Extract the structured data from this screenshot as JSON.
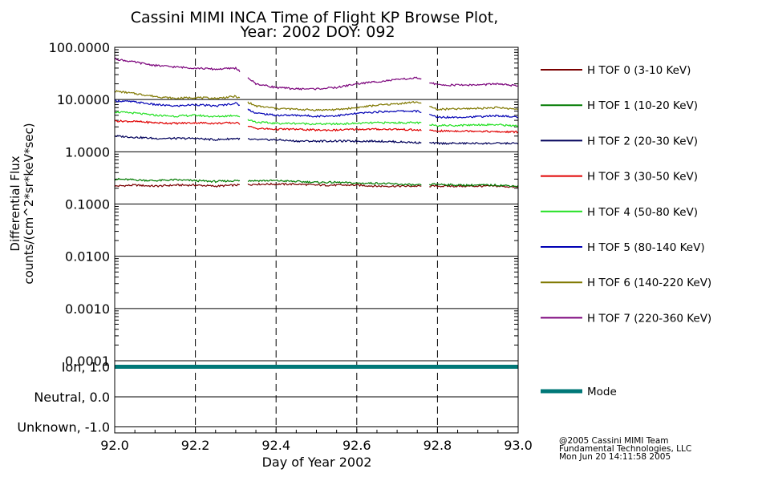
{
  "title": {
    "line1": "Cassini MIMI INCA Time of Flight KP Browse Plot,",
    "line2": "Year: 2002 DOY: 092"
  },
  "credits": {
    "line1": "@2005 Cassini MIMI Team",
    "line2": "Fundamental Technologies, LLC",
    "line3": "Mon Jun 20 14:11:58 2005"
  },
  "chart_data": [
    {
      "type": "line",
      "panel": "flux",
      "title": "Cassini MIMI INCA Time of Flight KP Browse Plot, Year: 2002 DOY: 092",
      "xlabel": "Day of Year 2002",
      "ylabel_line1": "Differential Flux",
      "ylabel_line2": "counts/(cm^2*sr*keV*sec)",
      "yscale": "log",
      "xlim": [
        92.0,
        93.0
      ],
      "ylim": [
        0.0001,
        100.0
      ],
      "x_ticks": [
        92.0,
        92.2,
        92.4,
        92.6,
        92.8,
        93.0
      ],
      "x_tick_labels": [
        "92.0",
        "92.2",
        "92.4",
        "92.6",
        "92.8",
        "93.0"
      ],
      "y_ticks": [
        0.0001,
        0.001,
        0.01,
        0.1,
        1,
        10,
        100
      ],
      "y_tick_labels": [
        "0.0001",
        "0.0010",
        "0.0100",
        "0.1000",
        "1.0000",
        "10.0000",
        "100.0000"
      ],
      "grid": true,
      "vlines_dashed": [
        92.2,
        92.4,
        92.6,
        92.8
      ],
      "data_gaps": [
        [
          92.31,
          92.33
        ],
        [
          92.76,
          92.78
        ]
      ],
      "x": [
        92.0,
        92.05,
        92.1,
        92.15,
        92.2,
        92.25,
        92.3,
        92.35,
        92.4,
        92.45,
        92.5,
        92.55,
        92.6,
        92.65,
        92.7,
        92.75,
        92.8,
        92.85,
        92.9,
        92.95,
        93.0
      ],
      "series": [
        {
          "name": "H TOF 0 (3-10 KeV)",
          "color": "#7a0000",
          "values": [
            0.22,
            0.23,
            0.22,
            0.23,
            0.23,
            0.22,
            0.23,
            0.24,
            0.24,
            0.24,
            0.23,
            0.23,
            0.23,
            0.22,
            0.22,
            0.22,
            0.22,
            0.22,
            0.22,
            0.22,
            0.21
          ]
        },
        {
          "name": "H TOF 1 (10-20 KeV)",
          "color": "#007a00",
          "values": [
            0.3,
            0.29,
            0.28,
            0.29,
            0.28,
            0.27,
            0.28,
            0.28,
            0.28,
            0.27,
            0.26,
            0.26,
            0.25,
            0.25,
            0.24,
            0.23,
            0.24,
            0.23,
            0.23,
            0.23,
            0.22
          ]
        },
        {
          "name": "H TOF 2 (20-30 KeV)",
          "color": "#00005a",
          "values": [
            2.0,
            1.9,
            1.8,
            1.8,
            1.8,
            1.7,
            1.8,
            1.7,
            1.7,
            1.6,
            1.6,
            1.6,
            1.6,
            1.6,
            1.55,
            1.5,
            1.45,
            1.45,
            1.45,
            1.45,
            1.45
          ]
        },
        {
          "name": "H TOF 3 (30-50 KeV)",
          "color": "#e00000",
          "values": [
            3.9,
            3.8,
            3.6,
            3.5,
            3.6,
            3.5,
            3.6,
            2.8,
            2.7,
            2.7,
            2.6,
            2.6,
            2.7,
            2.7,
            2.7,
            2.6,
            2.5,
            2.5,
            2.5,
            2.4,
            2.4
          ]
        },
        {
          "name": "H TOF 4 (50-80 KeV)",
          "color": "#22e022",
          "values": [
            5.8,
            5.5,
            5.0,
            4.8,
            5.0,
            4.7,
            5.0,
            3.7,
            3.5,
            3.5,
            3.4,
            3.4,
            3.5,
            3.6,
            3.6,
            3.6,
            3.2,
            3.2,
            3.3,
            3.3,
            3.1
          ]
        },
        {
          "name": "H TOF 5 (80-140 KeV)",
          "color": "#0000b4",
          "values": [
            9.5,
            9.0,
            8.0,
            7.5,
            8.0,
            7.5,
            8.5,
            5.5,
            5.0,
            5.0,
            4.8,
            4.9,
            5.4,
            5.8,
            6.0,
            6.0,
            4.6,
            4.6,
            4.7,
            4.9,
            4.6
          ]
        },
        {
          "name": "H TOF 6 (140-220 KeV)",
          "color": "#807800",
          "values": [
            14.5,
            13.0,
            11.5,
            10.5,
            11.0,
            10.5,
            11.5,
            7.5,
            6.8,
            6.5,
            6.3,
            6.4,
            7.0,
            7.8,
            8.3,
            9.0,
            6.5,
            6.6,
            6.8,
            7.0,
            6.5
          ]
        },
        {
          "name": "H TOF 7 (220-360 KeV)",
          "color": "#7a007a",
          "values": [
            60,
            52,
            45,
            42,
            40,
            38,
            40,
            20,
            17,
            16,
            16,
            17,
            20,
            22,
            24,
            26,
            19,
            19,
            19,
            20,
            18
          ]
        }
      ]
    },
    {
      "type": "line",
      "panel": "mode",
      "xlim": [
        92.0,
        93.0
      ],
      "ylim": [
        -1.2,
        1.2
      ],
      "y_ticks": [
        1.0,
        0.0,
        -1.0
      ],
      "y_tick_labels": [
        "Ion, 1.0",
        "Neutral, 0.0",
        "Unknown, -1.0"
      ],
      "x": [
        92.0,
        93.0
      ],
      "series": [
        {
          "name": "Mode",
          "color": "#007878",
          "values": [
            1.0,
            1.0
          ]
        }
      ]
    }
  ]
}
